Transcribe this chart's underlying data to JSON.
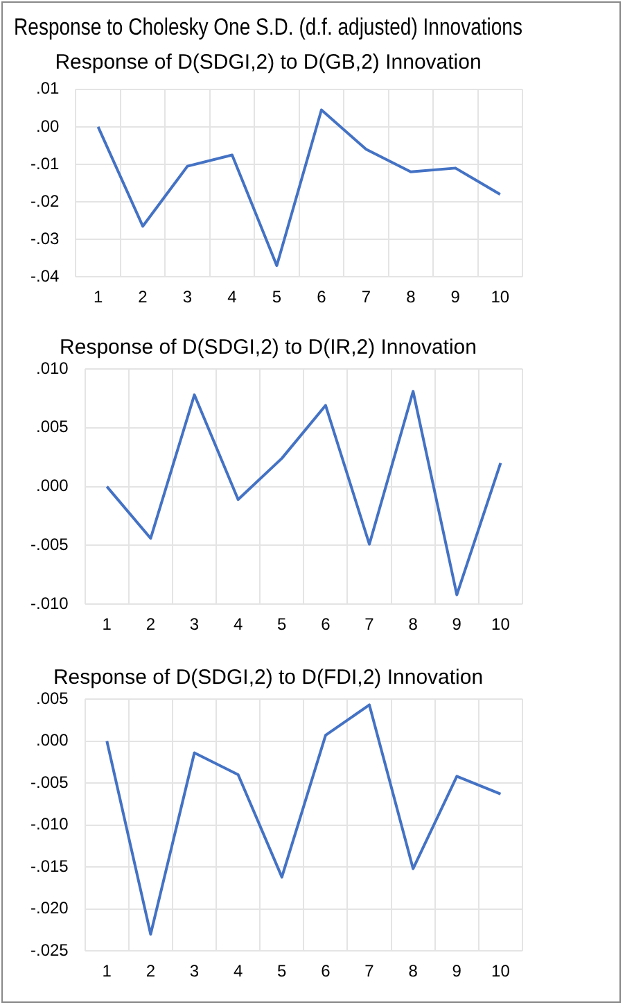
{
  "chart_data": [
    {
      "type": "line",
      "title": "Response to Cholesky One S.D. (d.f. adjusted) Innovations",
      "subtitle": "Response of D(SDGI,2) to D(GB,2) Innovation",
      "categories": [
        "1",
        "2",
        "3",
        "4",
        "5",
        "6",
        "7",
        "8",
        "9",
        "10"
      ],
      "series": [
        {
          "color": "#4472c4",
          "values": [
            0,
            -0.0265,
            -0.0105,
            -0.0075,
            -0.037,
            0.0045,
            -0.006,
            -0.012,
            -0.011,
            -0.018
          ]
        }
      ],
      "ylim": [
        -0.04,
        0.01
      ],
      "yticks": [
        {
          "value": 0.01,
          "label": ".01"
        },
        {
          "value": 0,
          "label": ".00"
        },
        {
          "value": -0.01,
          "label": "-.01"
        },
        {
          "value": -0.02,
          "label": "-.02"
        },
        {
          "value": -0.03,
          "label": "-.03"
        },
        {
          "value": -0.04,
          "label": "-.04"
        }
      ],
      "grid": true,
      "marker": "none"
    },
    {
      "type": "line",
      "title": "Response of D(SDGI,2) to D(IR,2) Innovation",
      "categories": [
        "1",
        "2",
        "3",
        "4",
        "5",
        "6",
        "7",
        "8",
        "9",
        "10"
      ],
      "series": [
        {
          "color": "#4472c4",
          "values": [
            0,
            -0.0044,
            0.0078,
            -0.0011,
            0.0024,
            0.0069,
            -0.0049,
            0.0081,
            -0.0092,
            0.002
          ]
        }
      ],
      "ylim": [
        -0.01,
        0.01
      ],
      "yticks": [
        {
          "value": 0.01,
          "label": ".010"
        },
        {
          "value": 0.005,
          "label": ".005"
        },
        {
          "value": 0,
          "label": ".000"
        },
        {
          "value": -0.005,
          "label": "-.005"
        },
        {
          "value": -0.01,
          "label": "-.010"
        }
      ],
      "grid": true,
      "marker": "none"
    },
    {
      "type": "line",
      "title": "Response of D(SDGI,2) to D(FDI,2) Innovation",
      "categories": [
        "1",
        "2",
        "3",
        "4",
        "5",
        "6",
        "7",
        "8",
        "9",
        "10"
      ],
      "series": [
        {
          "color": "#4472c4",
          "values": [
            0,
            -0.023,
            -0.0014,
            -0.004,
            -0.0162,
            0.0007,
            0.0043,
            -0.0152,
            -0.0042,
            -0.0063
          ]
        }
      ],
      "ylim": [
        -0.025,
        0.005
      ],
      "yticks": [
        {
          "value": 0.005,
          "label": ".005"
        },
        {
          "value": 0,
          "label": ".000"
        },
        {
          "value": -0.005,
          "label": "-.005"
        },
        {
          "value": -0.01,
          "label": "-.010"
        },
        {
          "value": -0.015,
          "label": "-.015"
        },
        {
          "value": -0.02,
          "label": "-.020"
        },
        {
          "value": -0.025,
          "label": "-.025"
        }
      ],
      "grid": true,
      "marker": "none"
    }
  ]
}
